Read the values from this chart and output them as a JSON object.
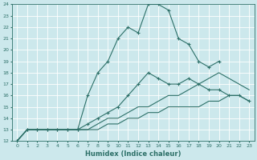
{
  "xlabel": "Humidex (Indice chaleur)",
  "background_color": "#cce8ec",
  "line_color": "#2d7068",
  "grid_color": "#ffffff",
  "xmin": 0,
  "xmax": 23,
  "ymin": 12,
  "ymax": 24,
  "series": [
    {
      "x": [
        0,
        1,
        2,
        3,
        4,
        5,
        6,
        7,
        8,
        9,
        10,
        11,
        12,
        13,
        14,
        15,
        16,
        17,
        18,
        19,
        20
      ],
      "y": [
        12,
        13,
        13,
        13,
        13,
        13,
        13,
        16,
        18,
        19,
        21,
        22,
        21.5,
        24,
        24,
        23.5,
        21,
        20.5,
        19,
        18.5,
        19
      ],
      "marker": "+"
    },
    {
      "x": [
        0,
        1,
        2,
        3,
        4,
        5,
        6,
        7,
        8,
        9,
        10,
        11,
        12,
        13,
        14,
        15,
        16,
        17,
        18,
        19,
        20,
        21,
        22,
        23
      ],
      "y": [
        12,
        13,
        13,
        13,
        13,
        13,
        13,
        13.5,
        14,
        14.5,
        15,
        16,
        17,
        18,
        17.5,
        17,
        17,
        17.5,
        17,
        16.5,
        16.5,
        16,
        16,
        15.5
      ],
      "marker": "+"
    },
    {
      "x": [
        0,
        1,
        2,
        3,
        4,
        5,
        6,
        7,
        8,
        9,
        10,
        11,
        12,
        13,
        14,
        15,
        16,
        17,
        18,
        19,
        20,
        21,
        22,
        23
      ],
      "y": [
        12,
        13,
        13,
        13,
        13,
        13,
        13,
        13,
        13.5,
        14,
        14,
        14.5,
        15,
        15,
        15.5,
        16,
        16,
        16.5,
        17,
        17.5,
        18,
        17.5,
        17,
        16.5
      ],
      "marker": "None"
    },
    {
      "x": [
        0,
        1,
        2,
        3,
        4,
        5,
        6,
        7,
        8,
        9,
        10,
        11,
        12,
        13,
        14,
        15,
        16,
        17,
        18,
        19,
        20,
        21,
        22,
        23
      ],
      "y": [
        12,
        13,
        13,
        13,
        13,
        13,
        13,
        13,
        13,
        13.5,
        13.5,
        14,
        14,
        14.5,
        14.5,
        15,
        15,
        15,
        15,
        15.5,
        15.5,
        16,
        16,
        15.5
      ],
      "marker": "None"
    }
  ]
}
